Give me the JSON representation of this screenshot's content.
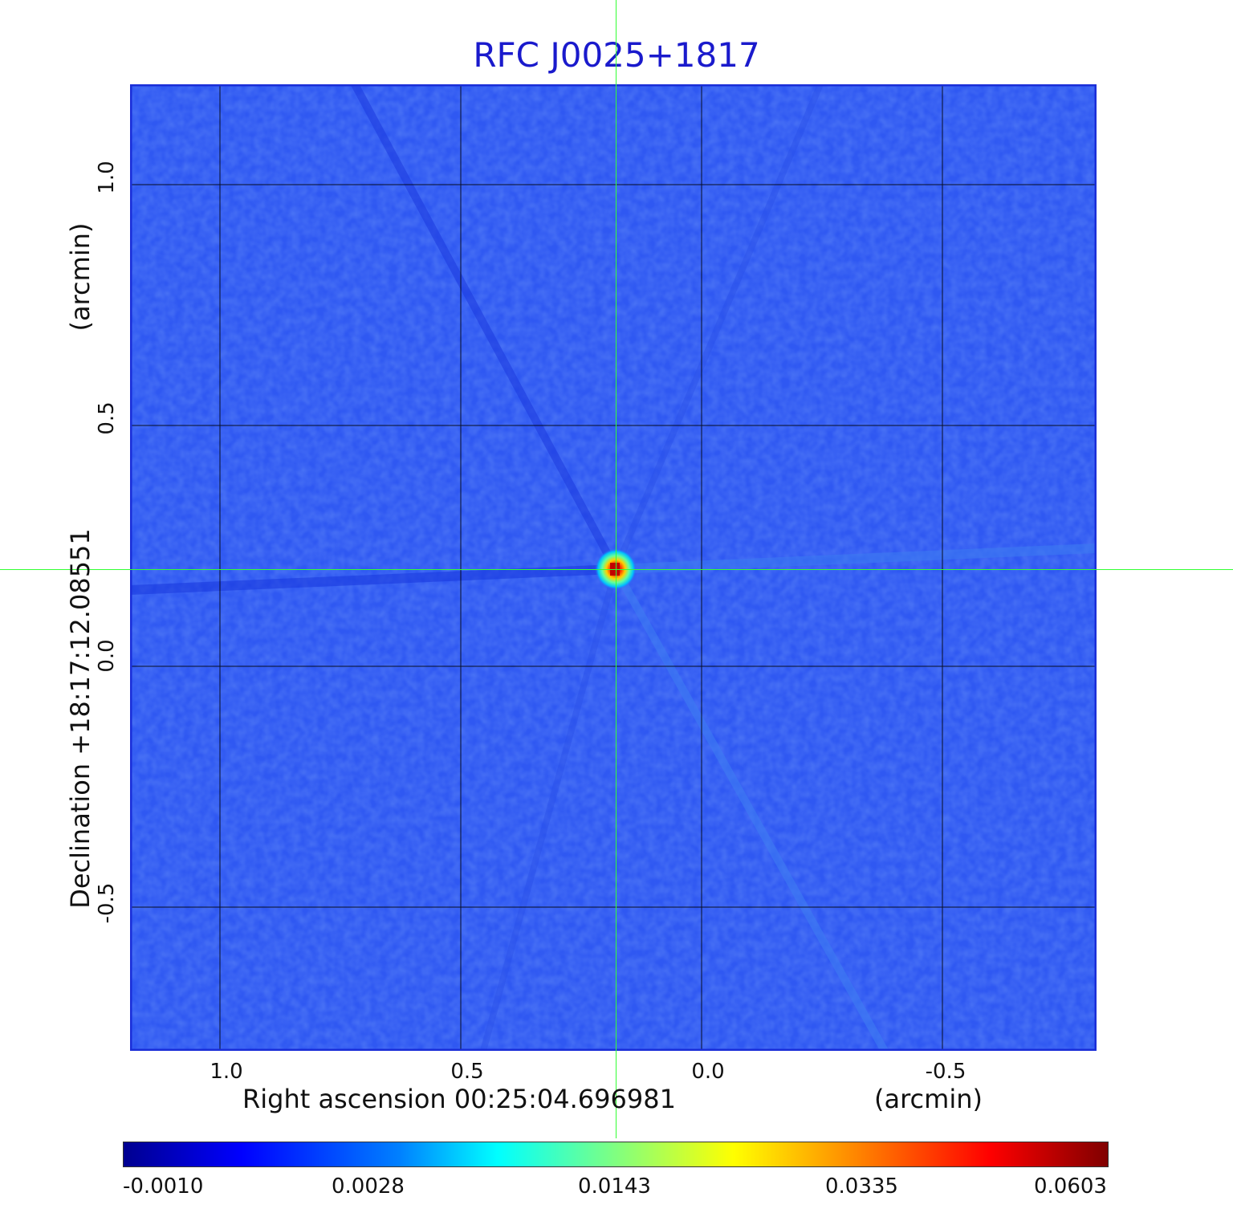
{
  "title": "RFC J0025+1817",
  "x_axis": {
    "label": "Right ascension  00:25:04.696981",
    "unit": "(arcmin)",
    "ticks": [
      "1.0",
      "0.5",
      "0.0",
      "-0.5"
    ]
  },
  "y_axis": {
    "label": "Declination  +18:17:12.08551",
    "unit": "(arcmin)",
    "ticks": [
      "1.0",
      "0.5",
      "0.0",
      "-0.5"
    ]
  },
  "colorbar": {
    "ticks": [
      "-0.0010",
      "0.0028",
      "0.0143",
      "0.0335",
      "0.0603"
    ]
  },
  "colors": {
    "background_map": "#2f58f2",
    "peak": "#d40000",
    "crosshair": "#33ff33",
    "title": "#1a1acc"
  }
}
